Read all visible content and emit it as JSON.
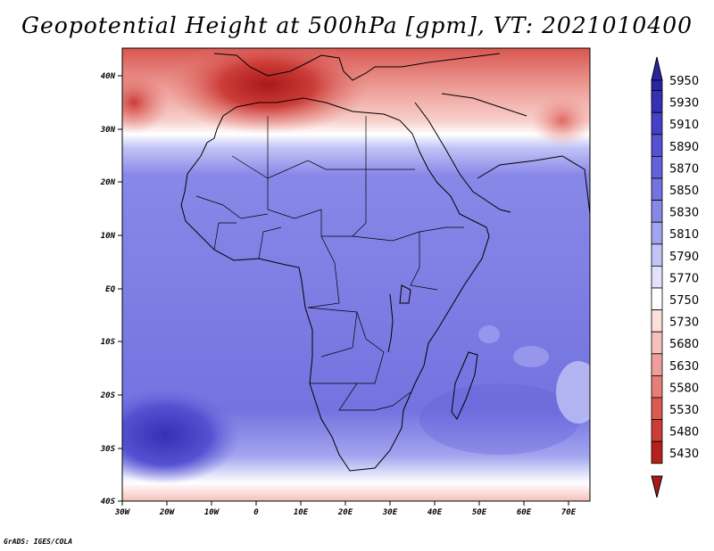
{
  "title": "Geopotential Height at 500hPa [gpm], VT: 2021010400",
  "footer": "GrADS: IGES/COLA",
  "lon_labels": [
    "30W",
    "20W",
    "10W",
    "0",
    "10E",
    "20E",
    "30E",
    "40E",
    "50E",
    "60E",
    "70E"
  ],
  "lat_labels": [
    "40N",
    "30N",
    "20N",
    "10N",
    "EQ",
    "10S",
    "20S",
    "30S",
    "40S"
  ],
  "colorbar": [
    {
      "label": "5950",
      "color": "#2a24a0"
    },
    {
      "label": "5930",
      "color": "#3630b4"
    },
    {
      "label": "5910",
      "color": "#4540c6"
    },
    {
      "label": "5890",
      "color": "#5551d2"
    },
    {
      "label": "5870",
      "color": "#6462da"
    },
    {
      "label": "5850",
      "color": "#7473e0"
    },
    {
      "label": "5830",
      "color": "#8888e8"
    },
    {
      "label": "5810",
      "color": "#a2a4ef"
    },
    {
      "label": "5790",
      "color": "#c2c4f6"
    },
    {
      "label": "5770",
      "color": "#e2e3fb"
    },
    {
      "label": "5750",
      "color": "#ffffff"
    },
    {
      "label": "5730",
      "color": "#fbe0de"
    },
    {
      "label": "5680",
      "color": "#f5c0bc"
    },
    {
      "label": "5630",
      "color": "#ee9f99"
    },
    {
      "label": "5580",
      "color": "#e67d76"
    },
    {
      "label": "5530",
      "color": "#dc5a54"
    },
    {
      "label": "5480",
      "color": "#cc3c38"
    },
    {
      "label": "5430",
      "color": "#b3221f"
    }
  ],
  "colorbar_top_arrow": "#2a24a0",
  "colorbar_bottom_arrow": "#a8191a"
}
